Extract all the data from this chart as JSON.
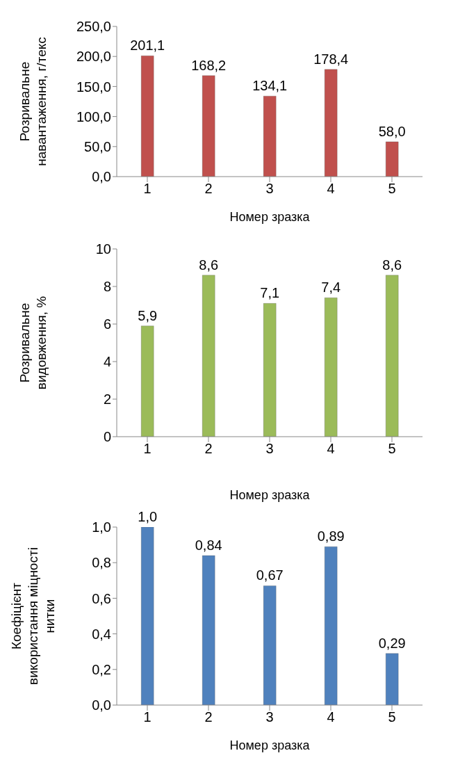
{
  "chart_data": [
    {
      "type": "bar",
      "ylabel": "Розривальне навантаження, г/текс",
      "xlabel": "Номер зразка",
      "categories": [
        "1",
        "2",
        "3",
        "4",
        "5"
      ],
      "values": [
        201.1,
        168.2,
        134.1,
        178.4,
        58.0
      ],
      "value_labels": [
        "201,1",
        "168,2",
        "134,1",
        "178,4",
        "58,0"
      ],
      "color": "#c0504d",
      "ylim": [
        0,
        250
      ],
      "yticks": [
        {
          "value": 0,
          "label": "0,0"
        },
        {
          "value": 50,
          "label": "50,0"
        },
        {
          "value": 100,
          "label": "100,0"
        },
        {
          "value": 150,
          "label": "150,0"
        },
        {
          "value": 200,
          "label": "200,0"
        },
        {
          "value": 250,
          "label": "250,0"
        }
      ],
      "grid": false,
      "legend": false
    },
    {
      "type": "bar",
      "ylabel": "Розривальне видовження, %",
      "xlabel": "Номер зразка",
      "categories": [
        "1",
        "2",
        "3",
        "4",
        "5"
      ],
      "values": [
        5.9,
        8.6,
        7.1,
        7.4,
        8.6
      ],
      "value_labels": [
        "5,9",
        "8,6",
        "7,1",
        "7,4",
        "8,6"
      ],
      "color": "#9bbb59",
      "ylim": [
        0,
        10
      ],
      "yticks": [
        0,
        2,
        4,
        6,
        8,
        10
      ],
      "grid": false,
      "legend": false
    },
    {
      "type": "bar",
      "ylabel": "Коефіцієнт використання міцності нитки",
      "xlabel": "Номер зразка",
      "categories": [
        "1",
        "2",
        "3",
        "4",
        "5"
      ],
      "values": [
        1.0,
        0.84,
        0.67,
        0.89,
        0.29
      ],
      "value_labels": [
        "1,0",
        "0,84",
        "0,67",
        "0,89",
        "0,29"
      ],
      "color": "#4f81bd",
      "ylim": [
        0,
        1
      ],
      "yticks": [
        {
          "value": 0,
          "label": "0,0"
        },
        {
          "value": 0.2,
          "label": "0,2"
        },
        {
          "value": 0.4,
          "label": "0,4"
        },
        {
          "value": 0.6,
          "label": "0,6"
        },
        {
          "value": 0.8,
          "label": "0,8"
        },
        {
          "value": 1,
          "label": "1,0"
        }
      ],
      "grid": false,
      "legend": false
    }
  ]
}
